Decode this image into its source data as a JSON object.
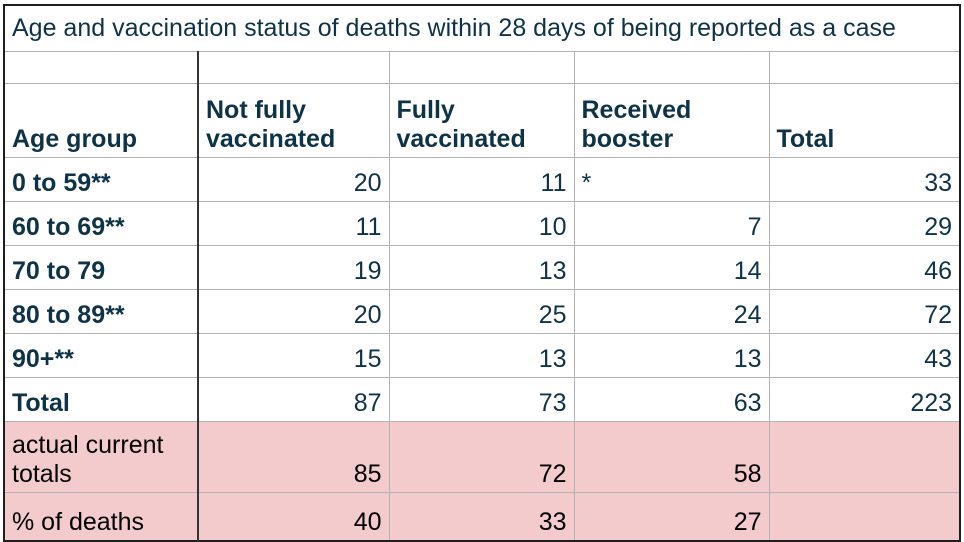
{
  "title": "Age and vaccination status of deaths within 28 days of being reported as a case",
  "columns": {
    "age_group": "Age group",
    "not_fully": "Not fully vaccinated",
    "fully": "Fully vaccinated",
    "booster": "Received booster",
    "total": "Total"
  },
  "rows": [
    {
      "label": "0 to 59**",
      "values": [
        "20",
        "11",
        "*",
        "33"
      ]
    },
    {
      "label": "60 to 69**",
      "values": [
        "11",
        "10",
        "7",
        "29"
      ]
    },
    {
      "label": "70 to 79",
      "values": [
        "19",
        "13",
        "14",
        "46"
      ]
    },
    {
      "label": "80 to 89**",
      "values": [
        "20",
        "25",
        "24",
        "72"
      ]
    },
    {
      "label": "90+**",
      "values": [
        "15",
        "13",
        "13",
        "43"
      ]
    },
    {
      "label": "Total",
      "values": [
        "87",
        "73",
        "63",
        "223"
      ]
    }
  ],
  "annotation_rows": [
    {
      "label": "actual current totals",
      "values": [
        "85",
        "72",
        "58",
        ""
      ]
    },
    {
      "label": "% of deaths",
      "values": [
        "40",
        "33",
        "27",
        ""
      ]
    }
  ],
  "colors": {
    "text_navy": "#0e3347",
    "highlight_pink": "#f4cbcc",
    "border_gray": "#b2b2b2",
    "border_dark": "#333333"
  }
}
